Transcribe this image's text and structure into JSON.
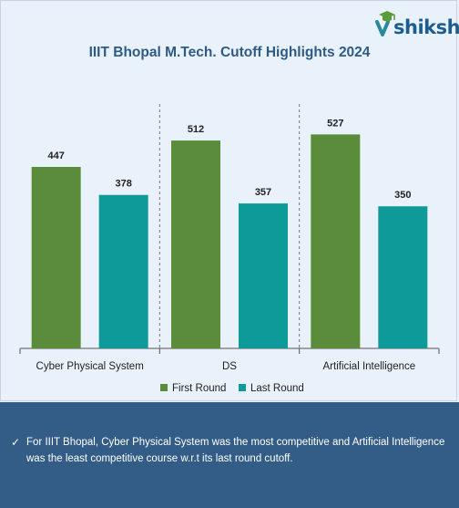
{
  "brand": {
    "name": "shiksha",
    "logo_icon": "graduation-cap-icon",
    "color": "#1b5d8f"
  },
  "title": "IIIT Bhopal M.Tech. Cutoff Highlights 2024",
  "chart_data": {
    "type": "bar",
    "title": "IIIT Bhopal M.Tech. Cutoff Highlights 2024",
    "categories": [
      "Cyber Physical System",
      "DS",
      "Artificial Intelligence"
    ],
    "series": [
      {
        "name": "First Round",
        "values": [
          447,
          512,
          527
        ],
        "color": "#5b8c3c"
      },
      {
        "name": "Last Round",
        "values": [
          378,
          357,
          350
        ],
        "color": "#0f9a9a"
      }
    ],
    "xlabel": "",
    "ylabel": "",
    "ylim": [
      0,
      620
    ],
    "grid": false,
    "legend": "bottom",
    "data_labels": true
  },
  "note": {
    "icon": "check-icon",
    "text": "For IIIT Bhopal, Cyber Physical System was the most competitive and Artificial Intelligence was the least competitive course w.r.t its last round cutoff."
  }
}
